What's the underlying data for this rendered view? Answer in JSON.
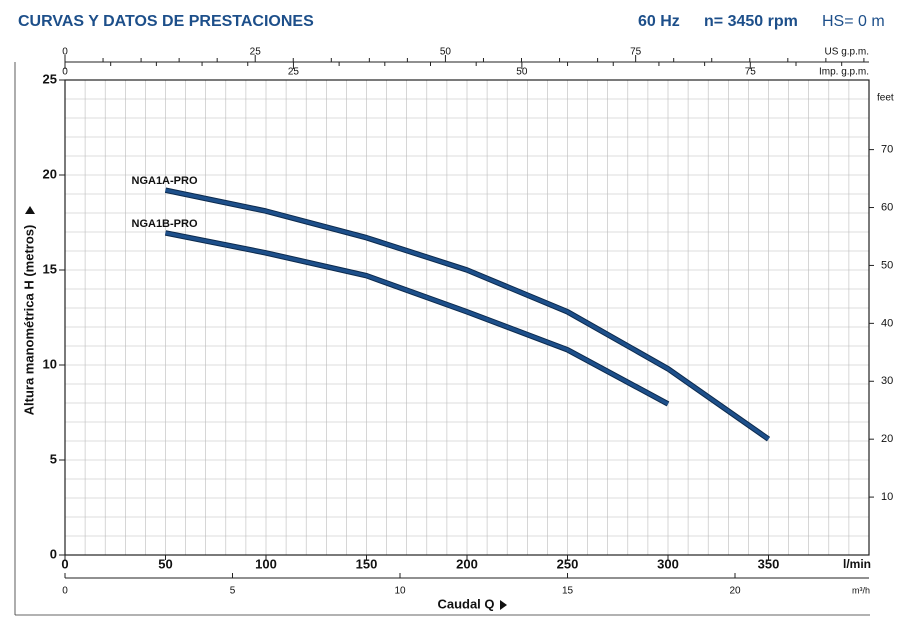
{
  "chart_data": {
    "type": "line",
    "title": "CURVAS Y DATOS DE PRESTACIONES",
    "frequency": "60 Hz",
    "speed": "n= 3450 rpm",
    "suction": "HS= 0 m",
    "x_label": "Caudal Q",
    "y_label": "Altura manométrica H (metros)",
    "x_unit": "l/min",
    "xlim": [
      0,
      400
    ],
    "xticks": [
      0,
      50,
      100,
      150,
      200,
      250,
      300,
      350
    ],
    "ylim": [
      0,
      25
    ],
    "yticks": [
      0,
      5,
      10,
      15,
      20,
      25
    ],
    "grid": true,
    "grid_x": [
      10,
      20,
      30,
      40,
      50,
      60,
      70,
      80,
      90,
      100,
      110,
      120,
      130,
      140,
      150,
      160,
      170,
      180,
      190,
      200,
      210,
      220,
      230,
      240,
      250,
      260,
      270,
      280,
      290,
      300,
      310,
      320,
      330,
      340,
      350,
      360,
      370,
      380,
      390
    ],
    "grid_y": [
      1,
      2,
      3,
      4,
      5,
      6,
      7,
      8,
      9,
      10,
      11,
      12,
      13,
      14,
      15,
      16,
      17,
      18,
      19,
      20,
      21,
      22,
      23,
      24
    ],
    "series": [
      {
        "name": "NGA1A-PRO",
        "color": "#1d4f8a",
        "x": [
          50,
          100,
          150,
          200,
          250,
          300,
          350
        ],
        "values": [
          19.2,
          18.1,
          16.7,
          15.0,
          12.8,
          9.8,
          6.1
        ]
      },
      {
        "name": "NGA1B-PRO",
        "color": "#1d4f8a",
        "x": [
          50,
          100,
          150,
          200,
          250,
          300
        ],
        "values": [
          16.95,
          15.9,
          14.7,
          12.8,
          10.8,
          7.95
        ]
      }
    ],
    "us_gpm_axis": {
      "label": "US g.p.m.",
      "lim": [
        0,
        105.67
      ],
      "ticks": [
        0,
        25,
        50,
        75
      ],
      "minor": [
        5,
        10,
        15,
        20,
        30,
        35,
        40,
        45,
        55,
        60,
        65,
        70,
        80,
        85,
        90,
        95,
        100,
        105
      ]
    },
    "imp_gpm_axis": {
      "label": "Imp. g.p.m.",
      "lim": [
        0,
        87.99
      ],
      "ticks": [
        0,
        25,
        50,
        75
      ],
      "minor": [
        5,
        10,
        15,
        20,
        30,
        35,
        40,
        45,
        55,
        60,
        65,
        70,
        80,
        85
      ]
    },
    "m3h_axis": {
      "label": "m³/h",
      "lim": [
        0,
        24
      ],
      "ticks": [
        0,
        5,
        10,
        15,
        20
      ]
    },
    "y2_label": "feet",
    "y2lim": [
      0,
      82.02
    ],
    "y2ticks": [
      10,
      20,
      30,
      40,
      50,
      60,
      70
    ]
  }
}
